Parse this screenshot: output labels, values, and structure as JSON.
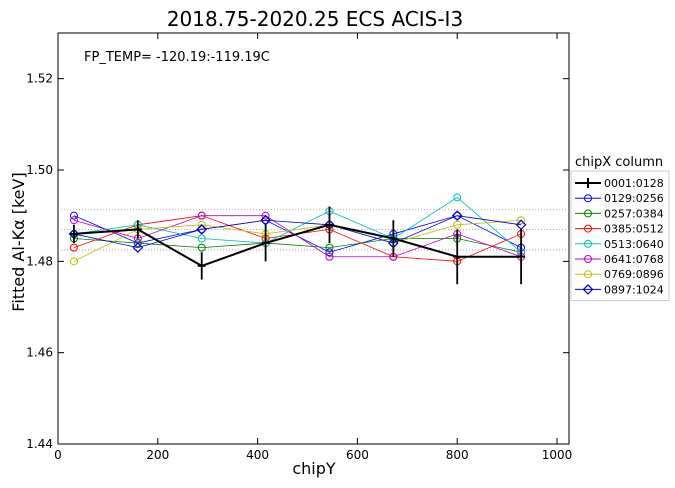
{
  "chart_data": {
    "type": "line",
    "title": "2018.75-2020.25   ECS   ACIS-I3",
    "xlabel": "chipY",
    "ylabel": "Fitted Al-Kα [keV]",
    "xlim": [
      0,
      1024
    ],
    "ylim": [
      1.44,
      1.53
    ],
    "xticks": [
      0,
      200,
      400,
      600,
      800,
      1000
    ],
    "yticks": [
      1.44,
      1.46,
      1.48,
      1.5,
      1.52
    ],
    "xtick_labels": [
      "0",
      "200",
      "400",
      "600",
      "800",
      "1000"
    ],
    "ytick_labels": [
      "1.44",
      "1.46",
      "1.48",
      "1.50",
      "1.52"
    ],
    "annotation": "FP_TEMP= -120.19:-119.19C",
    "reference_lines": [
      1.4825,
      1.487,
      1.4913
    ],
    "legend": {
      "title": "chipX column",
      "placement": "outside-right"
    },
    "x": [
      32,
      160,
      288,
      416,
      544,
      672,
      800,
      928
    ],
    "series": [
      {
        "name": "0001:0128",
        "color": "#000000",
        "marker": "none",
        "errorbars": true,
        "values": [
          1.486,
          1.487,
          1.479,
          1.484,
          1.488,
          1.485,
          1.481,
          1.481
        ],
        "errors": [
          0.002,
          0.002,
          0.003,
          0.004,
          0.004,
          0.004,
          0.006,
          0.006
        ]
      },
      {
        "name": "0129:0256",
        "color": "#0000ff",
        "marker": "circle",
        "values": [
          1.49,
          1.484,
          1.487,
          1.489,
          1.482,
          1.486,
          1.49,
          1.483
        ]
      },
      {
        "name": "0257:0384",
        "color": "#008000",
        "marker": "circle",
        "values": [
          1.485,
          1.484,
          1.483,
          1.484,
          1.483,
          1.485,
          1.485,
          1.482
        ]
      },
      {
        "name": "0385:0512",
        "color": "#ff0000",
        "marker": "circle",
        "values": [
          1.483,
          1.488,
          1.49,
          1.485,
          1.487,
          1.481,
          1.48,
          1.486
        ]
      },
      {
        "name": "0513:0640",
        "color": "#00bfbf",
        "marker": "circle",
        "values": [
          1.486,
          1.488,
          1.485,
          1.484,
          1.491,
          1.485,
          1.494,
          1.482
        ]
      },
      {
        "name": "0641:0768",
        "color": "#bf00bf",
        "marker": "circle",
        "values": [
          1.489,
          1.485,
          1.49,
          1.49,
          1.481,
          1.481,
          1.486,
          1.481
        ]
      },
      {
        "name": "0769:0896",
        "color": "#bfbf00",
        "marker": "circle",
        "values": [
          1.48,
          1.487,
          1.488,
          1.486,
          1.488,
          1.484,
          1.488,
          1.489
        ]
      },
      {
        "name": "0897:1024",
        "color": "#0000cd",
        "marker": "diamond",
        "values": [
          1.486,
          1.483,
          1.487,
          1.489,
          1.488,
          1.484,
          1.49,
          1.488
        ]
      }
    ]
  }
}
